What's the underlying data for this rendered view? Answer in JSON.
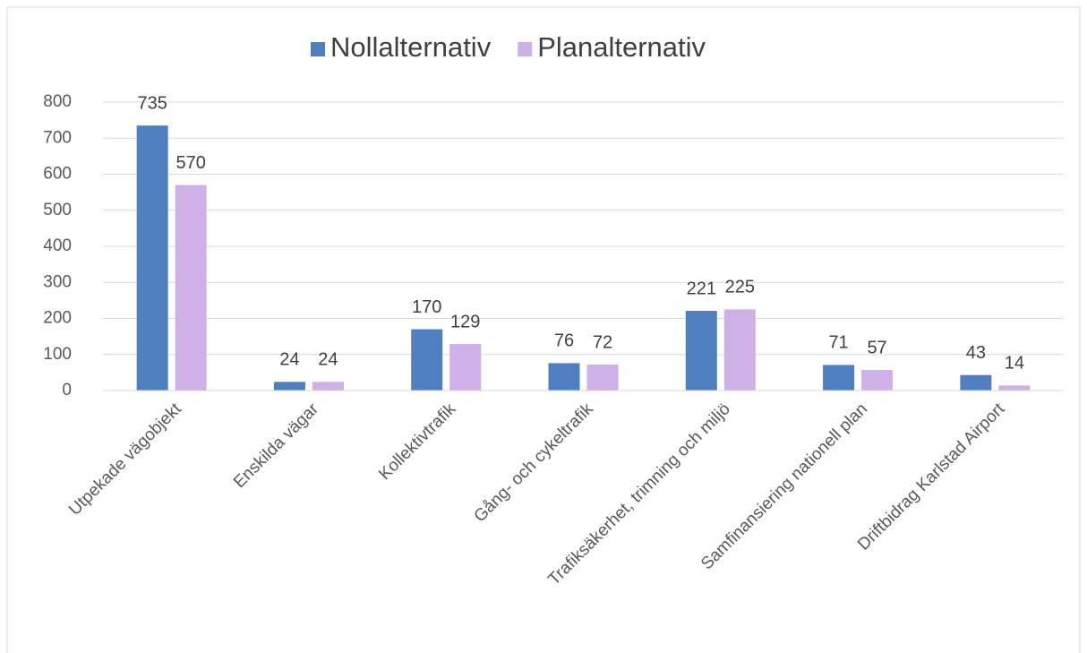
{
  "chart_data": {
    "type": "bar",
    "categories": [
      "Utpekade vägobjekt",
      "Enskilda vägar",
      "Kollektivtrafik",
      "Gång- och cykeltrafik",
      "Trafiksäkerhet, trimning och miljö",
      "Samfinansiering nationell plan",
      "Driftbidrag Karlstad Airport"
    ],
    "series": [
      {
        "name": "Nollalternativ",
        "color": "#4f7fbf",
        "values": [
          735,
          24,
          170,
          76,
          221,
          71,
          43
        ]
      },
      {
        "name": "Planalternativ",
        "color": "#cdb1e7",
        "values": [
          570,
          24,
          129,
          72,
          225,
          57,
          14
        ]
      }
    ],
    "ylim": [
      0,
      800
    ],
    "yticks": [
      0,
      100,
      200,
      300,
      400,
      500,
      600,
      700,
      800
    ],
    "grid": true,
    "legend": "top"
  }
}
